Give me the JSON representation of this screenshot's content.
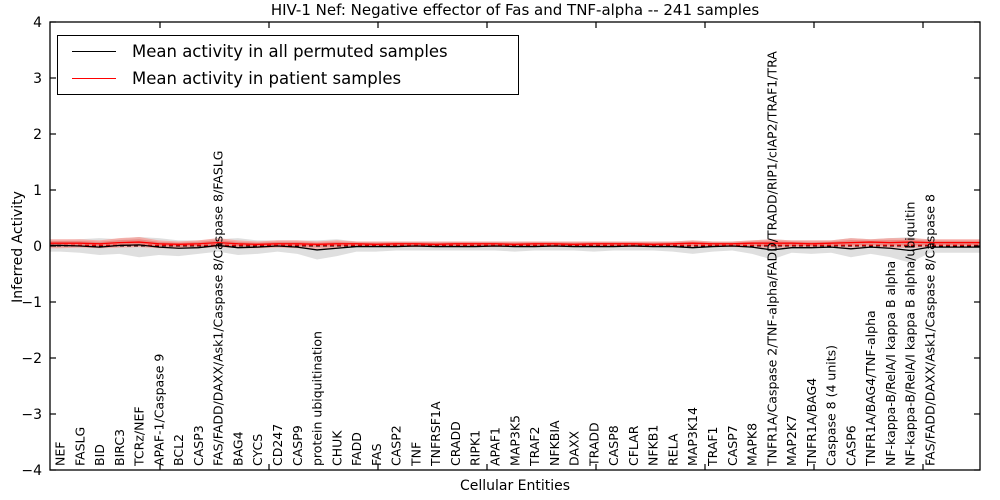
{
  "title": "HIV-1 Nef: Negative effector of Fas and TNF-alpha -- 241 samples",
  "legend": {
    "items": [
      {
        "label": "Mean activity in all permuted samples",
        "color": "#000000"
      },
      {
        "label": "Mean activity in patient samples",
        "color": "#ff0000"
      }
    ]
  },
  "chart_data": {
    "type": "line",
    "title": "HIV-1 Nef: Negative effector of Fas and TNF-alpha -- 241 samples",
    "xlabel": "Cellular Entities",
    "ylabel": "Inferred Activity",
    "ylim": [
      -4,
      4
    ],
    "yticks": {
      "values": [
        4,
        3,
        2,
        1,
        0,
        -1,
        -2,
        -3,
        -4
      ],
      "labels": [
        "4",
        "3",
        "2",
        "1",
        "0",
        "−1",
        "−2",
        "−3",
        "−4"
      ]
    },
    "grid": false,
    "legend_position": "upper left",
    "categories": [
      "NEF",
      "FASLG",
      "BID",
      "BIRC3",
      "TCRz/NEF",
      "APAF-1/Caspase 9",
      "BCL2",
      "CASP3",
      "FAS/FADD/DAXX/Ask1/Caspase 8/Caspase 8/FASLG",
      "BAG4",
      "CYCS",
      "CD247",
      "CASP9",
      "protein ubiquitination",
      "CHUK",
      "FADD",
      "FAS",
      "CASP2",
      "TNF",
      "TNFRSF1A",
      "CRADD",
      "RIPK1",
      "APAF1",
      "MAP3K5",
      "TRAF2",
      "NFKBIA",
      "DAXX",
      "TRADD",
      "CASP8",
      "CFLAR",
      "NFKB1",
      "RELA",
      "MAP3K14",
      "TRAF1",
      "CASP7",
      "MAPK8",
      "TNFR1A/Caspase 2/TNF-alpha/FADD/TRADD/RIP1/cIAP2/TRAF1/TRA",
      "MAP2K7",
      "TNFR1A/BAG4",
      "Caspase 8 (4 units)",
      "CASP6",
      "TNFR1A/BAG4/TNF-alpha",
      "NF-kappa-B/RelA/I kappa B alpha",
      "NF-kappa-B/RelA/I kappa B alpha/ubiquitin",
      "FAS/FADD/DAXX/Ask1/Caspase 8/Caspase 8"
    ],
    "series": [
      {
        "name": "Mean activity in all permuted samples",
        "color": "#000000",
        "style": "solid",
        "values": [
          0.01,
          0,
          -0.02,
          0.01,
          0.02,
          -0.02,
          -0.04,
          -0.03,
          0.01,
          -0.03,
          -0.02,
          0,
          -0.02,
          -0.07,
          -0.04,
          -0.01,
          -0.01,
          -0.01,
          0,
          -0.01,
          -0.01,
          -0.01,
          0,
          -0.01,
          -0.01,
          0,
          -0.01,
          -0.01,
          -0.01,
          0,
          -0.01,
          -0.01,
          -0.03,
          -0.01,
          0,
          -0.02,
          -0.07,
          -0.03,
          -0.03,
          -0.02,
          -0.05,
          -0.02,
          -0.04,
          -0.08,
          -0.02
        ]
      },
      {
        "name": "Mean activity in patient samples",
        "color": "#ff0000",
        "style": "solid",
        "values": [
          0.05,
          0.05,
          0.04,
          0.06,
          0.07,
          0.04,
          0.03,
          0.04,
          0.06,
          0.04,
          0.03,
          0.04,
          0.04,
          0.03,
          0.04,
          0.04,
          0.03,
          0.04,
          0.04,
          0.03,
          0.04,
          0.04,
          0.04,
          0.03,
          0.04,
          0.04,
          0.03,
          0.04,
          0.04,
          0.04,
          0.03,
          0.04,
          0.05,
          0.04,
          0.04,
          0.05,
          0.05,
          0.05,
          0.04,
          0.05,
          0.06,
          0.07,
          0.06,
          0.07,
          0.06
        ]
      }
    ],
    "baselines": [
      {
        "name": "permuted-zero-dashed",
        "value": 0,
        "color": "#000000",
        "style": "dashed"
      },
      {
        "name": "patient-zero-dashed",
        "value": 0.015,
        "color": "#ff0000",
        "style": "dashed"
      }
    ],
    "bands": [
      {
        "name": "permuted-activity-range",
        "color": "#d9d9d9",
        "upper": [
          0.1,
          0.12,
          0.14,
          0.12,
          0.16,
          0.14,
          0.1,
          0.1,
          0.12,
          0.14,
          0.1,
          0.1,
          0.1,
          0.1,
          0.12,
          0.08,
          0.08,
          0.08,
          0.08,
          0.08,
          0.08,
          0.08,
          0.08,
          0.08,
          0.08,
          0.08,
          0.08,
          0.08,
          0.08,
          0.08,
          0.08,
          0.08,
          0.1,
          0.08,
          0.08,
          0.1,
          0.12,
          0.1,
          0.1,
          0.1,
          0.14,
          0.12,
          0.14,
          0.16,
          0.1
        ],
        "lower": [
          -0.1,
          -0.12,
          -0.16,
          -0.14,
          -0.2,
          -0.16,
          -0.18,
          -0.14,
          -0.1,
          -0.16,
          -0.14,
          -0.1,
          -0.14,
          -0.24,
          -0.18,
          -0.1,
          -0.1,
          -0.08,
          -0.08,
          -0.08,
          -0.08,
          -0.08,
          -0.08,
          -0.1,
          -0.08,
          -0.08,
          -0.08,
          -0.1,
          -0.08,
          -0.08,
          -0.08,
          -0.1,
          -0.14,
          -0.1,
          -0.08,
          -0.14,
          -0.24,
          -0.12,
          -0.14,
          -0.12,
          -0.2,
          -0.14,
          -0.2,
          -0.3,
          -0.12
        ]
      },
      {
        "name": "patient-activity-range",
        "color": "#f3a59f",
        "upper": [
          0.12,
          0.12,
          0.1,
          0.14,
          0.16,
          0.1,
          0.08,
          0.1,
          0.14,
          0.1,
          0.08,
          0.1,
          0.1,
          0.08,
          0.1,
          0.08,
          0.08,
          0.08,
          0.08,
          0.08,
          0.08,
          0.08,
          0.08,
          0.08,
          0.08,
          0.08,
          0.08,
          0.08,
          0.08,
          0.08,
          0.08,
          0.08,
          0.1,
          0.08,
          0.08,
          0.1,
          0.12,
          0.1,
          0.1,
          0.1,
          0.14,
          0.12,
          0.14,
          0.14,
          0.12
        ],
        "lower": [
          -0.04,
          -0.03,
          -0.04,
          -0.03,
          -0.02,
          -0.04,
          -0.05,
          -0.04,
          -0.02,
          -0.04,
          -0.04,
          -0.03,
          -0.04,
          -0.05,
          -0.04,
          -0.02,
          -0.02,
          -0.02,
          -0.02,
          -0.02,
          -0.02,
          -0.02,
          -0.02,
          -0.02,
          -0.02,
          -0.02,
          -0.02,
          -0.02,
          -0.02,
          -0.02,
          -0.02,
          -0.02,
          -0.03,
          -0.02,
          -0.02,
          -0.03,
          -0.04,
          -0.03,
          -0.03,
          -0.03,
          -0.03,
          -0.02,
          -0.03,
          -0.04,
          -0.02
        ]
      }
    ]
  }
}
